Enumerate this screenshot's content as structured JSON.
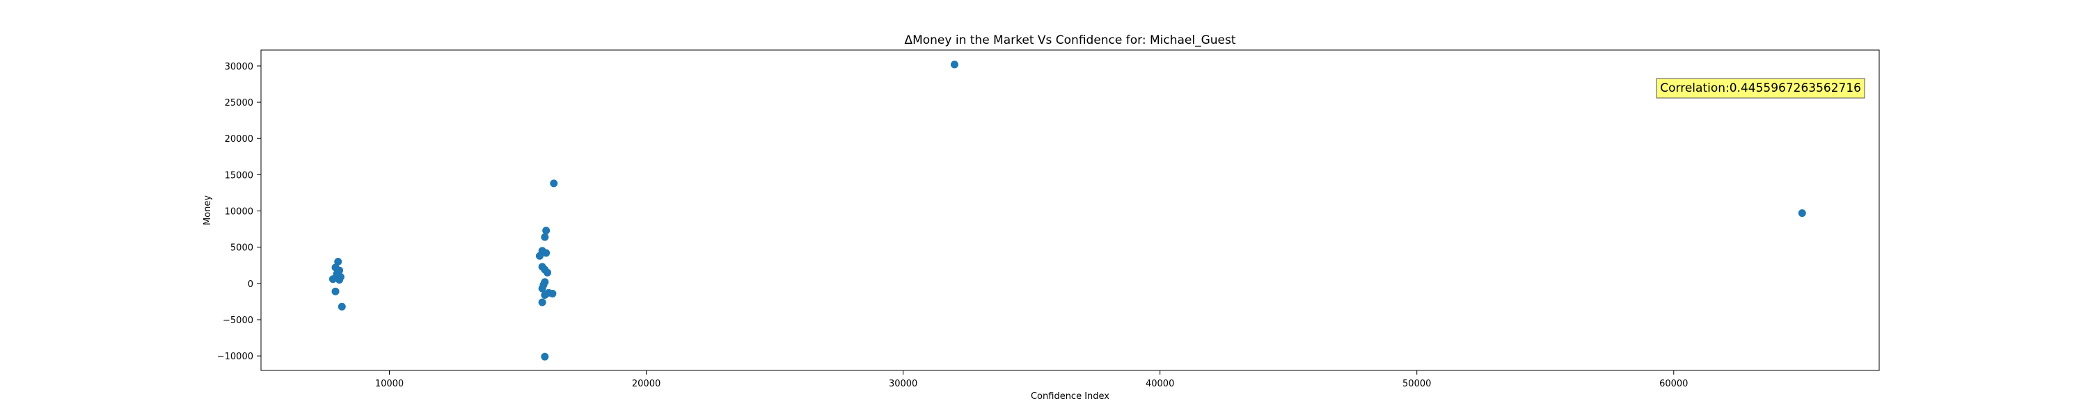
{
  "chart_data": {
    "type": "scatter",
    "title": "ΔMoney in the Market Vs Confidence for: Michael_Guest",
    "xlabel": "Confidence Index",
    "ylabel": "Money",
    "xlim": [
      5000,
      68000
    ],
    "ylim": [
      -12000,
      32200
    ],
    "xticks": [
      10000,
      20000,
      30000,
      40000,
      50000,
      60000
    ],
    "yticks": [
      -10000,
      -5000,
      0,
      5000,
      10000,
      15000,
      20000,
      25000,
      30000
    ],
    "grid": false,
    "point_color": "#1f77b4",
    "annotation": {
      "text": "Correlation:0.4455967263562716",
      "background": "#ffff77",
      "placement": "top-right"
    },
    "points": [
      {
        "x": 8000,
        "y": 3000
      },
      {
        "x": 7900,
        "y": 2200
      },
      {
        "x": 8050,
        "y": 1800
      },
      {
        "x": 7950,
        "y": 1300
      },
      {
        "x": 8100,
        "y": 900
      },
      {
        "x": 7800,
        "y": 600
      },
      {
        "x": 8050,
        "y": 500
      },
      {
        "x": 7900,
        "y": -1100
      },
      {
        "x": 8150,
        "y": -3200
      },
      {
        "x": 16400,
        "y": 13800
      },
      {
        "x": 16100,
        "y": 7300
      },
      {
        "x": 16050,
        "y": 6400
      },
      {
        "x": 15950,
        "y": 4500
      },
      {
        "x": 16100,
        "y": 4200
      },
      {
        "x": 15850,
        "y": 3800
      },
      {
        "x": 15950,
        "y": 2300
      },
      {
        "x": 16050,
        "y": 1900
      },
      {
        "x": 16150,
        "y": 1500
      },
      {
        "x": 16050,
        "y": 200
      },
      {
        "x": 16000,
        "y": -200
      },
      {
        "x": 15950,
        "y": -700
      },
      {
        "x": 16200,
        "y": -1300
      },
      {
        "x": 16350,
        "y": -1400
      },
      {
        "x": 16050,
        "y": -1600
      },
      {
        "x": 15950,
        "y": -2600
      },
      {
        "x": 16050,
        "y": -10100
      },
      {
        "x": 32000,
        "y": 30200
      },
      {
        "x": 65000,
        "y": 9700
      }
    ]
  }
}
